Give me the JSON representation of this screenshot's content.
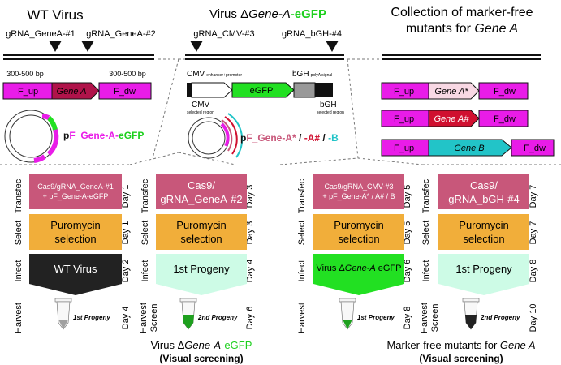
{
  "titles": {
    "wt": "WT Virus",
    "virus_prefix": "Virus Δ",
    "virus_gene": "Gene-A",
    "virus_suffix": "-eGFP",
    "collection_line1": "Collection of marker-free",
    "collection_line2_a": "mutants for ",
    "collection_line2_b": "Gene A"
  },
  "grnas": {
    "genea1": "gRNA_GeneA-#1",
    "genea2": "gRNA_GeneA-#2",
    "cmv3": "gRNA_CMV-#3",
    "bgh4": "gRNA_bGH-#4"
  },
  "constructs": {
    "bp_left": "300-500 bp",
    "bp_right": "300-500 bp",
    "f_up": "F_up",
    "f_dw": "F_dw",
    "gene_a": "Gene A",
    "gene_a_star": "Gene A*",
    "gene_a_hash": "Gene A#",
    "gene_b": "Gene B",
    "cmv_label": "CMV",
    "cmv_sub": "enhancer+promoter",
    "bgh_label": "bGH",
    "bgh_sub": "polyA signal",
    "egfp": "eGFP",
    "cmv_region": "CMV",
    "cmv_region_sub": "selected region",
    "bgh_region": "bGH",
    "bgh_region_sub": "selected region"
  },
  "plasmids": {
    "p1_prefix": "p",
    "p1_main": "F_Gene-A-",
    "p1_gfp": "eGFP",
    "p2_prefix": "p",
    "p2_main": "F_Gene-A*",
    "p2_sep1": " / ",
    "p2_hash": "-A#",
    "p2_sep2": " / ",
    "p2_b": "-B"
  },
  "workflow": {
    "row_labels": {
      "transfec": "Transfec",
      "select": "Select",
      "infect": "Infect",
      "harvest": "Harvest",
      "screen": "Screen"
    },
    "columns": [
      {
        "transfec_line1": "Cas9/gRNA_GeneA-#1",
        "transfec_line2": "+ pF_Gene-A-eGFP",
        "day1": "Day 1",
        "select_line1": "Puromycin",
        "select_line2": "selection",
        "day2": "Day 1",
        "infect": "WT Virus",
        "day3": "Day 2",
        "tube": "1st Progeny",
        "day4": "Day 4"
      },
      {
        "transfec_line1": "Cas9/",
        "transfec_line2": "gRNA_GeneA-#2",
        "day1": "Day 3",
        "select_line1": "Puromycin",
        "select_line2": "selection",
        "day2": "Day 3",
        "infect": "1st Progeny",
        "day3": "Day 4",
        "tube": "2nd Progeny",
        "day4": "Day 6"
      },
      {
        "transfec_line1": "Cas9/gRNA_CMV-#3",
        "transfec_line2": "+ pF_Gene-A* / A# / B",
        "day1": "Day 5",
        "select_line1": "Puromycin",
        "select_line2": "selection",
        "day2": "Day 5",
        "infect_a": "Virus Δ",
        "infect_b": "Gene-A",
        "infect_c": " eGFP",
        "day3": "Day 6",
        "tube": "1st Progeny",
        "day4": "Day 8"
      },
      {
        "transfec_line1": "Cas9/",
        "transfec_line2": "gRNA_bGH-#4",
        "day1": "Day 7",
        "select_line1": "Puromycin",
        "select_line2": "selection",
        "day2": "Day 7",
        "infect": "1st Progeny",
        "day3": "Day 8",
        "tube": "2nd Progeny",
        "day4": "Day 10"
      }
    ]
  },
  "bottom": {
    "left_prefix": "Virus Δ",
    "left_gene": "Gene-A",
    "left_gfp": "-eGFP",
    "left_sub": "(Visual screening)",
    "right_a": "Marker-free mutants for ",
    "right_b": "Gene A",
    "right_sub": "(Visual screening)"
  },
  "colors": {
    "magenta": "#e91ce8",
    "maroon": "#b0134a",
    "green": "#22e022",
    "cyan": "#22c4c8",
    "mauve": "#c8577a",
    "orange": "#f1ae3a",
    "mint": "#cdfbe6",
    "dark": "#222222"
  }
}
